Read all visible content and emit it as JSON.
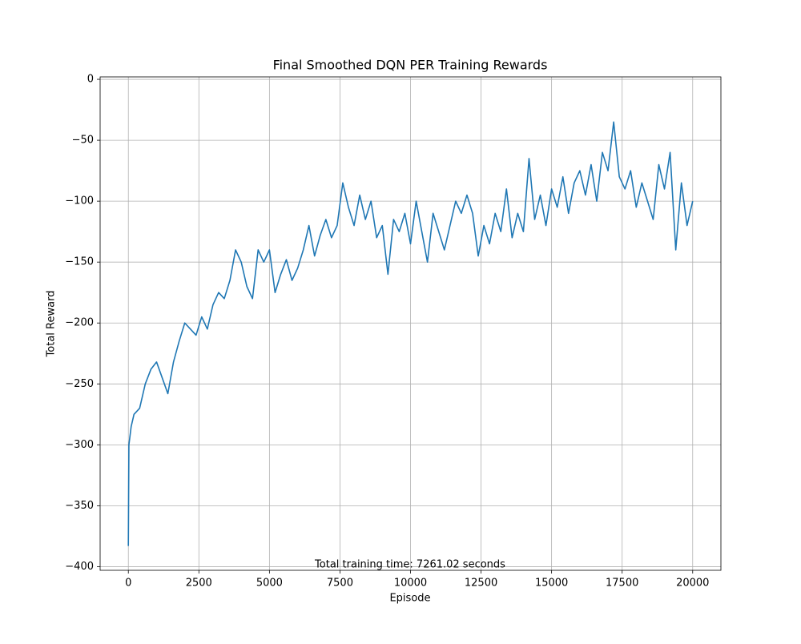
{
  "chart_data": {
    "type": "line",
    "title": "Final Smoothed DQN PER Training Rewards",
    "xlabel": "Episode",
    "ylabel": "Total Reward",
    "annotation": "Total training time: 7261.02 seconds",
    "color": "#1f77b4",
    "grid": true,
    "xlim": [
      -1000,
      21000
    ],
    "ylim": [
      -403,
      2
    ],
    "xticks": [
      0,
      2500,
      5000,
      7500,
      10000,
      12500,
      15000,
      17500,
      20000
    ],
    "yticks": [
      {
        "value": -400,
        "label": "−400"
      },
      {
        "value": -350,
        "label": "−350"
      },
      {
        "value": -300,
        "label": "−300"
      },
      {
        "value": -250,
        "label": "−250"
      },
      {
        "value": -200,
        "label": "−200"
      },
      {
        "value": -150,
        "label": "−150"
      },
      {
        "value": -100,
        "label": "−100"
      },
      {
        "value": -50,
        "label": "−50"
      },
      0
    ],
    "x": [
      0,
      20,
      100,
      200,
      400,
      600,
      800,
      1000,
      1200,
      1400,
      1600,
      1800,
      2000,
      2200,
      2400,
      2600,
      2800,
      3000,
      3200,
      3400,
      3600,
      3800,
      4000,
      4200,
      4400,
      4600,
      4800,
      5000,
      5200,
      5400,
      5600,
      5800,
      6000,
      6200,
      6400,
      6600,
      6800,
      7000,
      7200,
      7400,
      7600,
      7800,
      8000,
      8200,
      8400,
      8600,
      8800,
      9000,
      9200,
      9400,
      9600,
      9800,
      10000,
      10200,
      10400,
      10600,
      10800,
      11000,
      11200,
      11400,
      11600,
      11800,
      12000,
      12200,
      12400,
      12600,
      12800,
      13000,
      13200,
      13400,
      13600,
      13800,
      14000,
      14200,
      14400,
      14600,
      14800,
      15000,
      15200,
      15400,
      15600,
      15800,
      16000,
      16200,
      16400,
      16600,
      16800,
      17000,
      17200,
      17400,
      17600,
      17800,
      18000,
      18200,
      18400,
      18600,
      18800,
      19000,
      19200,
      19400,
      19600,
      19800,
      20000
    ],
    "values": [
      -383,
      -300,
      -285,
      -275,
      -270,
      -250,
      -238,
      -232,
      -245,
      -258,
      -232,
      -215,
      -200,
      -205,
      -210,
      -195,
      -205,
      -185,
      -175,
      -180,
      -165,
      -140,
      -150,
      -170,
      -180,
      -140,
      -150,
      -140,
      -175,
      -160,
      -148,
      -165,
      -155,
      -140,
      -120,
      -145,
      -128,
      -115,
      -130,
      -120,
      -85,
      -105,
      -120,
      -95,
      -115,
      -100,
      -130,
      -120,
      -160,
      -115,
      -125,
      -110,
      -135,
      -100,
      -125,
      -150,
      -110,
      -125,
      -140,
      -120,
      -100,
      -110,
      -95,
      -110,
      -145,
      -120,
      -135,
      -110,
      -125,
      -90,
      -130,
      -110,
      -125,
      -65,
      -115,
      -95,
      -120,
      -90,
      -105,
      -80,
      -110,
      -85,
      -75,
      -95,
      -70,
      -100,
      -60,
      -75,
      -35,
      -80,
      -90,
      -75,
      -105,
      -85,
      -100,
      -115,
      -70,
      -90,
      -60,
      -140,
      -85,
      -120,
      -100
    ]
  }
}
